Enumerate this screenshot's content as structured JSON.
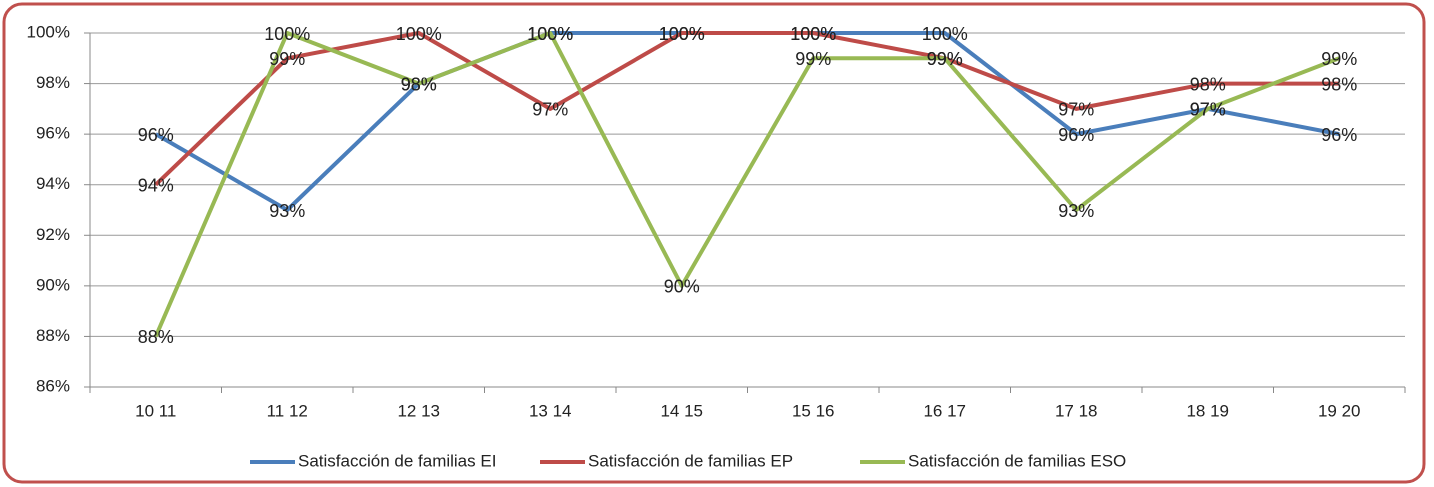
{
  "chart_data": {
    "type": "line",
    "categories": [
      "10 11",
      "11 12",
      "12 13",
      "13 14",
      "14 15",
      "15 16",
      "16 17",
      "17 18",
      "18 19",
      "19 20"
    ],
    "series": [
      {
        "name": "Satisfacción de familias EI",
        "color": "#4a7ebb",
        "values": [
          96,
          93,
          98,
          100,
          100,
          100,
          100,
          96,
          97,
          96
        ],
        "value_labels": [
          "96%",
          "93%",
          "98%",
          "100%",
          "100%",
          "100%",
          "100%",
          "96%",
          "97%",
          "96%"
        ]
      },
      {
        "name": "Satisfacción de familias EP",
        "color": "#be4b48",
        "values": [
          94,
          99,
          100,
          97,
          100,
          100,
          99,
          97,
          98,
          98
        ],
        "value_labels": [
          "94%",
          "99%",
          "100%",
          "97%",
          "100%",
          "100%",
          "99%",
          "97%",
          "98%",
          "98%"
        ]
      },
      {
        "name": "Satisfacción de familias ESO",
        "color": "#98b954",
        "values": [
          88,
          100,
          98,
          100,
          90,
          99,
          99,
          93,
          97,
          99
        ],
        "value_labels": [
          "88%",
          "100%",
          "98%",
          "100%",
          "90%",
          "99%",
          "99%",
          "93%",
          "97%",
          "99%"
        ]
      }
    ],
    "ylim": [
      86,
      100
    ],
    "yticks": [
      {
        "value": 86,
        "label": "86%"
      },
      {
        "value": 88,
        "label": "88%"
      },
      {
        "value": 90,
        "label": "90%"
      },
      {
        "value": 92,
        "label": "92%"
      },
      {
        "value": 94,
        "label": "94%"
      },
      {
        "value": 96,
        "label": "96%"
      },
      {
        "value": 98,
        "label": "98%"
      },
      {
        "value": 100,
        "label": "100%"
      }
    ],
    "grid": true,
    "legend": "bottom"
  }
}
